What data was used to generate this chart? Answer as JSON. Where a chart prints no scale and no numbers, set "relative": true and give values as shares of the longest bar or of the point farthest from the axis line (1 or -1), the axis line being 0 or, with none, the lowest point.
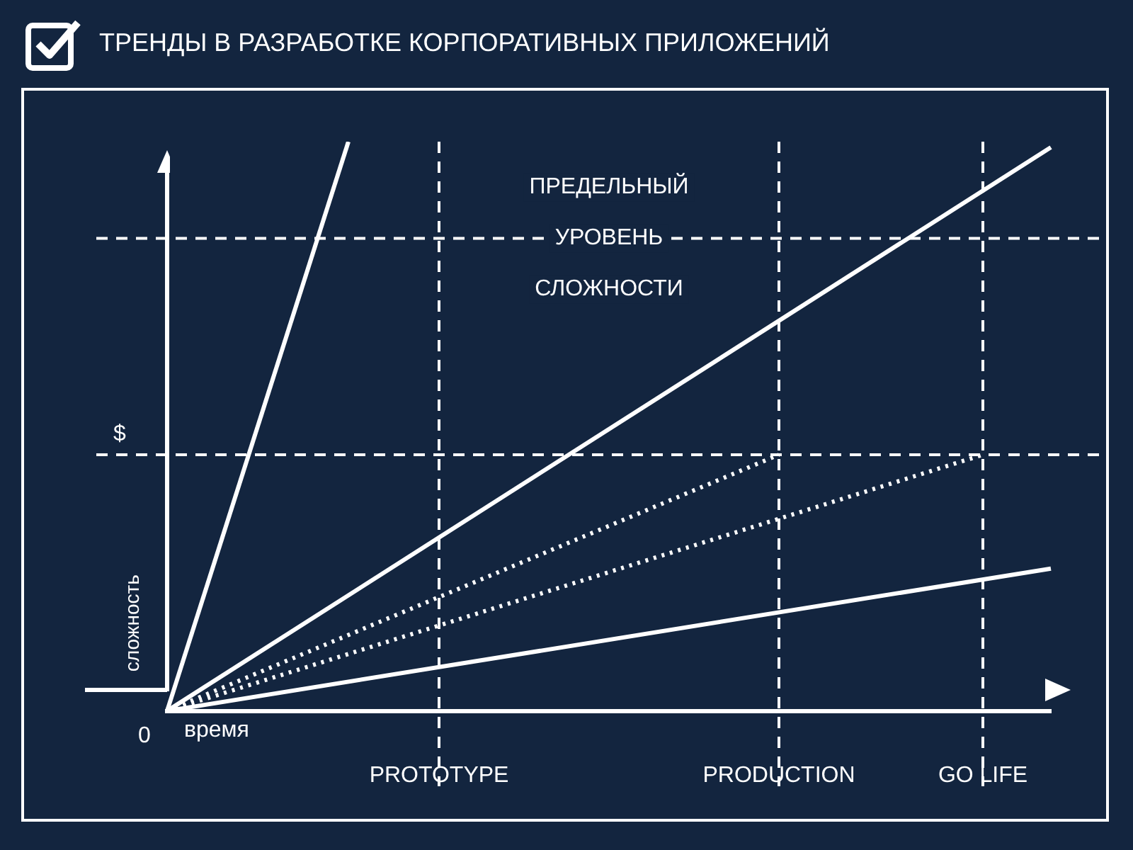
{
  "chart_data": {
    "type": "line",
    "title": "ТРЕНДЫ В РАЗРАБОТКЕ КОРПОРАТИВНЫХ ПРИЛОЖЕНИЙ",
    "xlabel": "время",
    "ylabel": "сложность",
    "relative": true,
    "tick_labels": "x",
    "marker": "none",
    "categories": [
      null,
      null,
      null,
      null,
      null,
      null,
      null,
      null,
      null,
      null,
      null,
      null,
      "PROTOTYPE",
      null,
      null,
      null,
      null,
      null,
      null,
      null,
      null,
      null,
      null,
      null,
      null,
      null,
      null,
      "PRODUCTION",
      null,
      null,
      null,
      null,
      null,
      null,
      null,
      null,
      "GO LIFE",
      null,
      null,
      null
    ],
    "series": [
      {
        "color": "#ffffff",
        "values": [
          0,
          null,
          null,
          null,
          null,
          null,
          null,
          null,
          1,
          null,
          null,
          null,
          null,
          null,
          null,
          null,
          null,
          null,
          null,
          null,
          null,
          null,
          null,
          null,
          null,
          null,
          null,
          null,
          null,
          null,
          null,
          null,
          null,
          null,
          null,
          null,
          null,
          null,
          null,
          null
        ]
      },
      {
        "color": "#ffffff",
        "values": [
          0,
          null,
          null,
          null,
          null,
          null,
          null,
          null,
          null,
          null,
          null,
          null,
          null,
          null,
          null,
          null,
          null,
          null,
          null,
          null,
          null,
          null,
          null,
          null,
          null,
          null,
          null,
          null,
          null,
          null,
          null,
          null,
          null,
          null,
          null,
          null,
          null,
          null,
          null,
          0.99
        ]
      },
      {
        "color": "#ffffff",
        "line_style": "dotted",
        "values": [
          0,
          null,
          null,
          null,
          null,
          null,
          null,
          null,
          null,
          null,
          null,
          null,
          null,
          null,
          null,
          null,
          null,
          null,
          null,
          null,
          null,
          null,
          null,
          null,
          null,
          null,
          null,
          0.45,
          null,
          null,
          null,
          null,
          null,
          null,
          null,
          null,
          null,
          null,
          null,
          null
        ]
      },
      {
        "color": "#ffffff",
        "line_style": "dotted",
        "values": [
          0,
          null,
          null,
          null,
          null,
          null,
          null,
          null,
          null,
          null,
          null,
          null,
          null,
          null,
          null,
          null,
          null,
          null,
          null,
          null,
          null,
          null,
          null,
          null,
          null,
          null,
          null,
          null,
          null,
          null,
          null,
          null,
          null,
          null,
          null,
          null,
          0.45,
          null,
          null,
          null
        ]
      },
      {
        "color": "#ffffff",
        "values": [
          0,
          null,
          null,
          null,
          null,
          null,
          null,
          null,
          null,
          null,
          null,
          null,
          null,
          null,
          null,
          null,
          null,
          null,
          null,
          null,
          null,
          null,
          null,
          null,
          null,
          null,
          null,
          null,
          null,
          null,
          null,
          null,
          null,
          null,
          null,
          null,
          null,
          null,
          null,
          0.25
        ]
      }
    ],
    "ref_lines": [
      {
        "axis": "y",
        "value": 0.45,
        "label": "$",
        "color": "#ffffff",
        "line_style": "dashed"
      },
      {
        "axis": "y",
        "value": 0.83,
        "label": "ПРЕДЕЛЬНЫЙ УРОВЕНЬ СЛОЖНОСТИ",
        "color": "#ffffff",
        "line_style": "dashed"
      },
      {
        "axis": "x",
        "value": "PROTOTYPE",
        "color": "#ffffff",
        "line_style": "dashed"
      },
      {
        "axis": "x",
        "value": "PRODUCTION",
        "color": "#ffffff",
        "line_style": "dashed"
      },
      {
        "axis": "x",
        "value": "GO LIFE",
        "color": "#ffffff",
        "line_style": "dashed"
      }
    ],
    "annotations": [
      "0"
    ]
  }
}
